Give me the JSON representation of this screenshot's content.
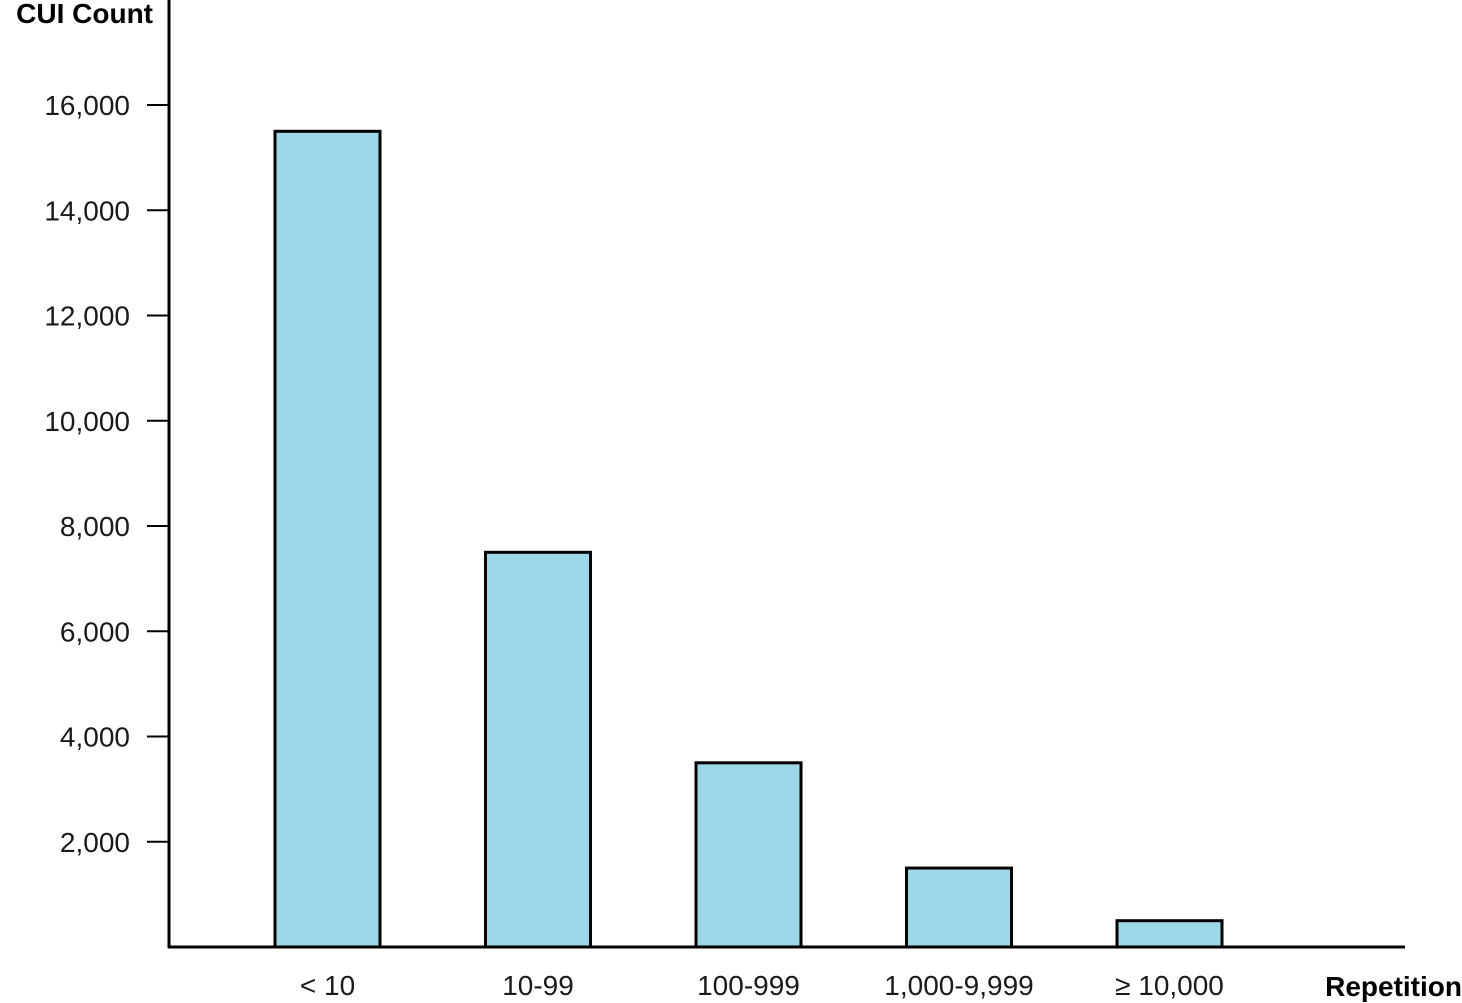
{
  "chart_data": {
    "type": "bar",
    "categories": [
      "< 10",
      "10-99",
      "100-999",
      "1,000-9,999",
      "≥ 10,000"
    ],
    "values": [
      15500,
      7500,
      3500,
      1500,
      500
    ],
    "ylabel": "CUI Count",
    "xlabel": "Repetition",
    "ylim": [
      0,
      18000
    ],
    "yticks": [
      2000,
      4000,
      6000,
      8000,
      10000,
      12000,
      14000,
      16000
    ],
    "ytick_labels": [
      "2,000",
      "4,000",
      "6,000",
      "8,000",
      "10,000",
      "12,000",
      "14,000",
      "16,000"
    ],
    "grid": false,
    "bar_color": "#9dd8e9",
    "bar_edge_color": "#000000"
  }
}
